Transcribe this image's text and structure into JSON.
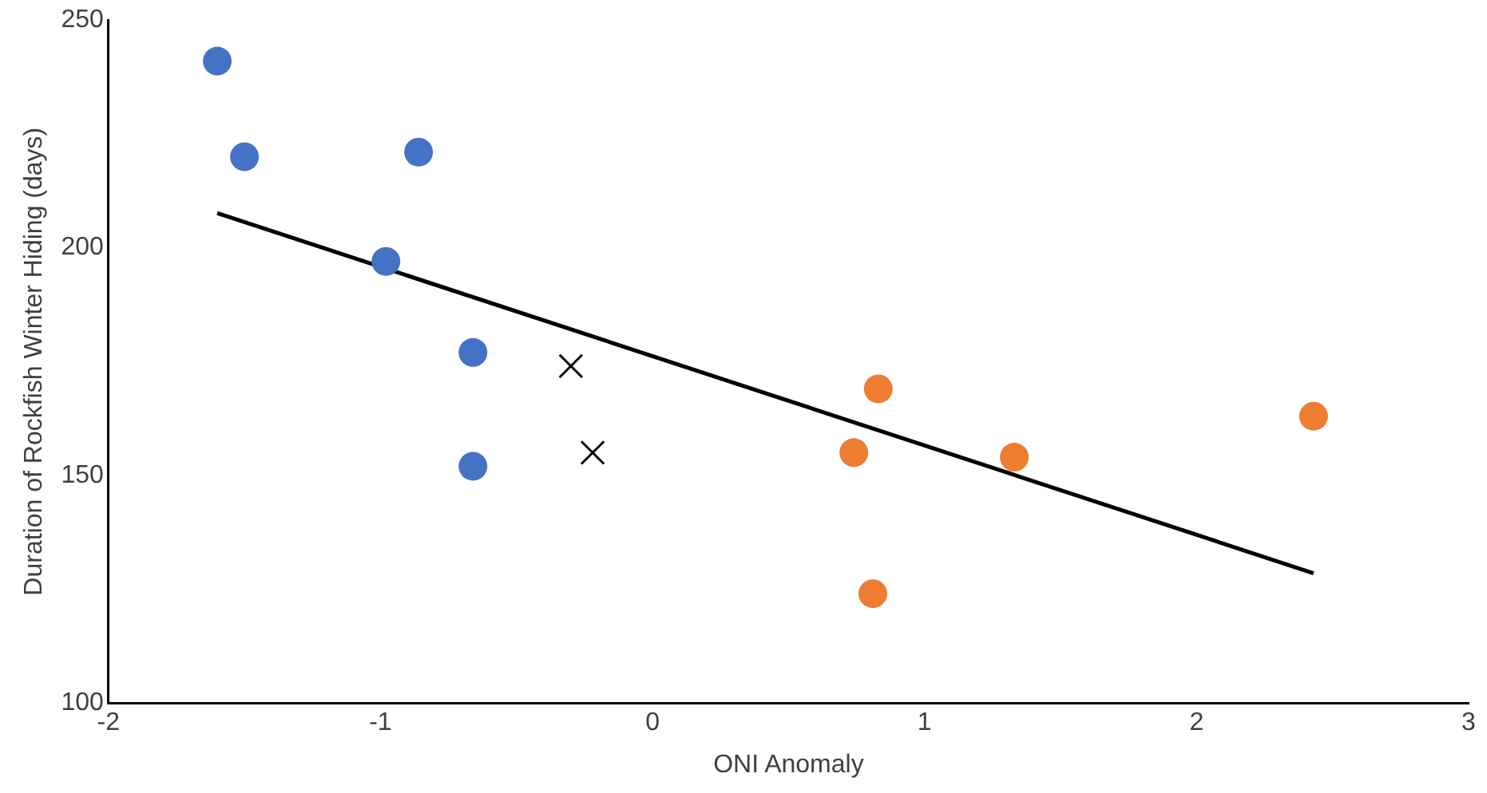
{
  "chart_data": {
    "type": "scatter",
    "xlabel": "ONI Anomaly",
    "ylabel": "Duration of Rockfish Winter Hiding (days)",
    "xlim": [
      -2,
      3
    ],
    "xticks": [
      -2,
      -1,
      0,
      1,
      2,
      3
    ],
    "ylim": [
      100,
      250
    ],
    "yticks": [
      100,
      150,
      200,
      250
    ],
    "grid": false,
    "legend": false,
    "series": [
      {
        "type": "scatter",
        "marker": "circle",
        "color": "#4472c4",
        "x": [
          -1.6,
          -1.5,
          -0.86,
          -0.98,
          -0.66,
          -0.66
        ],
        "values": [
          241,
          220,
          221,
          197,
          177,
          152
        ]
      },
      {
        "type": "scatter",
        "marker": "cross",
        "color": "#000000",
        "x": [
          -0.3,
          -0.22
        ],
        "values": [
          174,
          155
        ]
      },
      {
        "type": "scatter",
        "marker": "circle",
        "color": "#ed7d31",
        "x": [
          0.83,
          0.74,
          0.81,
          1.33,
          2.43
        ],
        "values": [
          169,
          155,
          124,
          154,
          163
        ]
      },
      {
        "type": "line",
        "marker": "none",
        "color": "#000000",
        "x": [
          -1.6,
          2.43
        ],
        "values": [
          207.6,
          128.5
        ]
      }
    ]
  }
}
